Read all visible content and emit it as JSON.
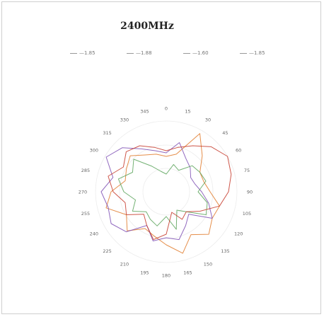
{
  "chart_data": {
    "type": "line",
    "subtype": "polar",
    "title": "2400MHz",
    "legend_placement": "top",
    "grid": true,
    "angular_ticks": [
      "0",
      "15",
      "30",
      "45",
      "60",
      "75",
      "90",
      "105",
      "120",
      "135",
      "150",
      "165",
      "180",
      "195",
      "210",
      "225",
      "240",
      "255",
      "270",
      "285",
      "300",
      "315",
      "330",
      "345"
    ],
    "angles_deg": [
      0,
      15,
      30,
      45,
      60,
      75,
      90,
      105,
      120,
      135,
      150,
      165,
      180,
      195,
      210,
      225,
      240,
      255,
      270,
      285,
      300,
      315,
      330,
      345
    ],
    "rlim": [
      0,
      1
    ],
    "series": [
      {
        "name": "—1.85",
        "color": "#e07a2a",
        "values": [
          0.5,
          0.55,
          0.95,
          0.72,
          0.55,
          0.55,
          0.62,
          0.78,
          0.75,
          0.85,
          0.7,
          0.9,
          0.75,
          0.65,
          0.6,
          0.78,
          0.65,
          0.88,
          0.78,
          0.6,
          0.65,
          0.72,
          0.6,
          0.55
        ]
      },
      {
        "name": "—1.88",
        "color": "#7e4fb4",
        "values": [
          0.55,
          0.72,
          0.55,
          0.48,
          0.4,
          0.42,
          0.5,
          0.62,
          0.75,
          0.45,
          0.55,
          0.7,
          0.65,
          0.72,
          0.55,
          0.8,
          0.9,
          0.85,
          0.92,
          0.78,
          0.98,
          0.88,
          0.7,
          0.6
        ]
      },
      {
        "name": "—1.60",
        "color": "#5aa35a",
        "values": [
          0.25,
          0.4,
          0.35,
          0.52,
          0.55,
          0.58,
          0.45,
          0.6,
          0.65,
          0.4,
          0.3,
          0.55,
          0.35,
          0.5,
          0.45,
          0.4,
          0.55,
          0.45,
          0.6,
          0.7,
          0.55,
          0.65,
          0.42,
          0.3
        ]
      },
      {
        "name": "—1.85",
        "color": "#c63a2c",
        "values": [
          0.58,
          0.65,
          0.75,
          0.9,
          1.0,
          0.95,
          0.88,
          0.78,
          0.55,
          0.4,
          0.45,
          0.3,
          0.6,
          0.7,
          0.55,
          0.45,
          0.65,
          0.6,
          0.75,
          0.85,
          0.7,
          0.8,
          0.75,
          0.65
        ]
      }
    ]
  }
}
